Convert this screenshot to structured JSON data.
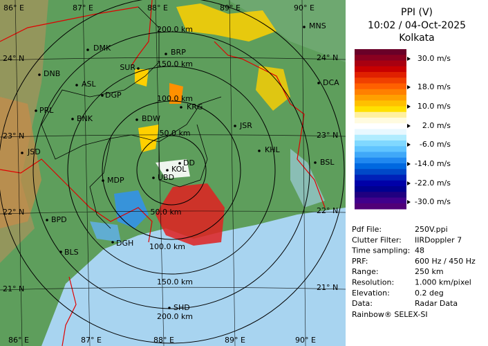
{
  "header": {
    "title": "PPI (V)",
    "datetime": "10:02 / 04-Oct-2025",
    "site": "Kolkata"
  },
  "legend": {
    "labels": [
      "30.0 m/s",
      "18.0 m/s",
      "10.0 m/s",
      "2.0 m/s",
      "-6.0 m/s",
      "-14.0 m/s",
      "-22.0 m/s",
      "-30.0 m/s"
    ]
  },
  "info": [
    {
      "key": "Pdf File:",
      "value": "250V.ppi"
    },
    {
      "key": "Clutter Filter:",
      "value": "IIRDoppler 7"
    },
    {
      "key": "Time sampling:",
      "value": "48"
    },
    {
      "key": "PRF:",
      "value": "600 Hz / 450 Hz"
    },
    {
      "key": "Range:",
      "value": "250 km"
    },
    {
      "key": "Resolution:",
      "value": "1.000 km/pixel"
    },
    {
      "key": "Elevation:",
      "value": "0.2 deg"
    },
    {
      "key": "Data:",
      "value": "Radar Data"
    }
  ],
  "footer": "Rainbow® SELEX-SI",
  "map": {
    "lon_labels": [
      "86° E",
      "87° E",
      "88° E",
      "89° E",
      "90° E"
    ],
    "lat_labels": [
      "24° N",
      "23° N",
      "22° N",
      "21° N"
    ],
    "ranges_north": [
      "200.0 km",
      "150.0 km",
      "100.0 km",
      "50.0 km"
    ],
    "ranges_south": [
      "50.0 km",
      "100.0 km",
      "150.0 km",
      "200.0 km"
    ],
    "places": [
      "DMK",
      "BRP",
      "MNS",
      "DNB",
      "SUR",
      "ASL",
      "DGP",
      "KRG",
      "DCA",
      "PRL",
      "BNK",
      "BDW",
      "JSR",
      "KHL",
      "JSD",
      "KOL",
      "DD",
      "BSL",
      "MDP",
      "UBD",
      "BPD",
      "DGH",
      "BLS",
      "SHD"
    ]
  }
}
